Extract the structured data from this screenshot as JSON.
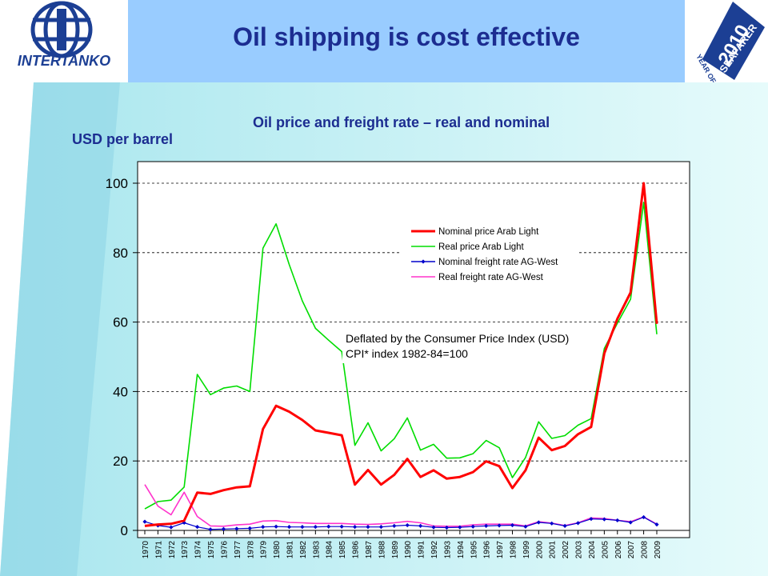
{
  "slide": {
    "title": "Oil shipping is cost effective",
    "logo_left_text": "INTERTANKO",
    "logo_right_year": "2010",
    "logo_right_line1": "YEAR OF THE",
    "logo_right_line2": "SEAFARER"
  },
  "colors": {
    "title": "#1c2d91",
    "nominal_price": "#ff0000",
    "real_price": "#00dd00",
    "nominal_freight": "#0000cc",
    "real_freight": "#ff33cc",
    "logo_blue": "#1c3f94"
  },
  "chart_data": {
    "type": "line",
    "title": "Oil price and freight rate – real and nominal",
    "ylabel": "USD per barrel",
    "xlabel": "",
    "ylim": [
      0,
      100
    ],
    "yticks": [
      "0",
      "20",
      "40",
      "60",
      "80",
      "100"
    ],
    "grid": true,
    "legend_placement": "top-right",
    "annotation_line1": "Deflated by the Consumer Price Index (USD)",
    "annotation_line2": "CPI* index 1982-84=100",
    "x": [
      "1970",
      "1971",
      "1972",
      "1973",
      "1974",
      "1975",
      "1976",
      "1977",
      "1978",
      "1979",
      "1980",
      "1981",
      "1982",
      "1983",
      "1984",
      "1985",
      "1986",
      "1987",
      "1988",
      "1989",
      "1990",
      "1991",
      "1992",
      "1993",
      "1994",
      "1995",
      "1996",
      "1997",
      "1998",
      "1999",
      "2000",
      "2001",
      "2002",
      "2003",
      "2004",
      "2005",
      "2006",
      "2007",
      "2008",
      "2009"
    ],
    "series": [
      {
        "name": "Nominal price Arab Light",
        "color": "#ff0000",
        "width": 3,
        "marker": false,
        "values": [
          1.3,
          1.7,
          1.9,
          2.8,
          10.9,
          10.5,
          11.6,
          12.4,
          12.7,
          29.2,
          35.9,
          34.2,
          31.8,
          28.8,
          28.1,
          27.4,
          13.2,
          17.4,
          13.2,
          16.0,
          20.6,
          15.4,
          17.3,
          14.9,
          15.4,
          16.8,
          19.9,
          18.5,
          12.2,
          17.3,
          26.7,
          23.1,
          24.3,
          27.7,
          29.8,
          51.0,
          61.0,
          68.5,
          100.0,
          59.5
        ]
      },
      {
        "name": "Real price Arab Light",
        "color": "#00dd00",
        "width": 1.6,
        "marker": false,
        "values": [
          6.2,
          8.3,
          8.7,
          12.5,
          44.9,
          39.1,
          41.0,
          41.6,
          40.0,
          81.3,
          88.3,
          76.6,
          66.1,
          58.2,
          54.8,
          51.5,
          24.5,
          31.0,
          22.9,
          26.4,
          32.4,
          23.1,
          24.8,
          20.8,
          20.9,
          22.1,
          25.9,
          23.8,
          15.2,
          21.0,
          31.3,
          26.5,
          27.3,
          30.3,
          32.2,
          52.4,
          59.7,
          66.6,
          94.5,
          56.5
        ]
      },
      {
        "name": "Nominal freight rate AG-West",
        "color": "#0000cc",
        "width": 1.2,
        "marker": true,
        "values": [
          2.5,
          1.4,
          0.9,
          2.2,
          1.0,
          0.3,
          0.4,
          0.5,
          0.6,
          1.0,
          1.1,
          1.0,
          1.0,
          1.0,
          1.1,
          1.1,
          1.0,
          1.0,
          1.0,
          1.3,
          1.5,
          1.3,
          0.9,
          0.8,
          0.9,
          1.1,
          1.3,
          1.4,
          1.5,
          1.1,
          2.3,
          2.0,
          1.3,
          2.1,
          3.3,
          3.2,
          2.9,
          2.3,
          3.8,
          1.7
        ]
      },
      {
        "name": "Real freight rate AG-West",
        "color": "#ff33cc",
        "width": 1.6,
        "marker": false,
        "values": [
          13.2,
          7.0,
          4.5,
          11.0,
          4.0,
          1.3,
          1.2,
          1.6,
          1.8,
          2.7,
          2.8,
          2.3,
          2.2,
          2.0,
          2.0,
          2.0,
          1.8,
          1.7,
          1.9,
          2.2,
          2.6,
          2.2,
          1.3,
          1.2,
          1.2,
          1.6,
          1.8,
          1.8,
          1.8,
          1.3,
          2.5,
          2.1,
          1.4,
          2.2,
          3.6,
          3.4,
          2.9,
          2.5,
          3.9,
          1.8
        ]
      }
    ]
  }
}
